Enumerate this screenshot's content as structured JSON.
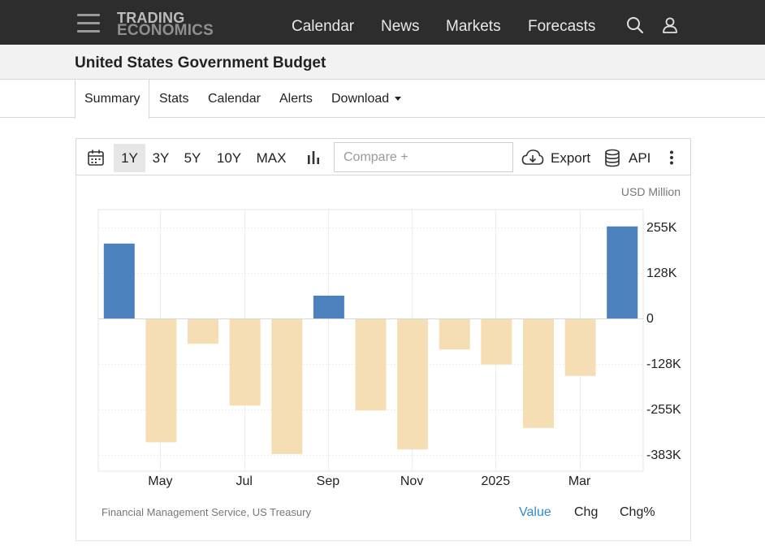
{
  "header": {
    "logo_line1": "TRADING",
    "logo_line2": "ECONOMICS",
    "nav": [
      "Calendar",
      "News",
      "Markets",
      "Forecasts"
    ],
    "icons": [
      "menu-icon",
      "search-icon",
      "user-icon"
    ]
  },
  "page": {
    "title": "United States Government Budget"
  },
  "tabs": [
    {
      "label": "Summary",
      "active": true
    },
    {
      "label": "Stats",
      "active": false
    },
    {
      "label": "Calendar",
      "active": false
    },
    {
      "label": "Alerts",
      "active": false
    },
    {
      "label": "Download",
      "active": false
    }
  ],
  "toolbar": {
    "ranges": [
      "1Y",
      "3Y",
      "5Y",
      "10Y",
      "MAX"
    ],
    "active_range": "1Y",
    "compare_placeholder": "Compare +",
    "export_label": "Export",
    "api_label": "API"
  },
  "chart_data": {
    "type": "bar",
    "unit": "USD Million",
    "categories": [
      "2024-04",
      "2024-05",
      "2024-06",
      "2024-07",
      "2024-08",
      "2024-09",
      "2024-10",
      "2024-11",
      "2024-12",
      "2025-01",
      "2025-02",
      "2025-03",
      "2025-04"
    ],
    "values": [
      210000,
      -347000,
      -71000,
      -244000,
      -380000,
      64000,
      -258000,
      -367000,
      -87000,
      -129000,
      -307000,
      -161000,
      258000
    ],
    "x_tick_labels": [
      "May",
      "Jul",
      "Sep",
      "Nov",
      "2025",
      "Mar"
    ],
    "y_tick_values": [
      255000,
      128000,
      0,
      -128000,
      -255000,
      -383000
    ],
    "y_tick_labels": [
      "255K",
      "128K",
      "0",
      "-128K",
      "-255K",
      "-383K"
    ],
    "ylim": [
      -430000,
      300000
    ],
    "grid": true,
    "colors": {
      "positive": "#4d81be",
      "negative": "#f5deb3"
    },
    "source": "Financial Management Service, US Treasury"
  },
  "view_modes": [
    {
      "label": "Value",
      "active": true
    },
    {
      "label": "Chg",
      "active": false
    },
    {
      "label": "Chg%",
      "active": false
    }
  ]
}
